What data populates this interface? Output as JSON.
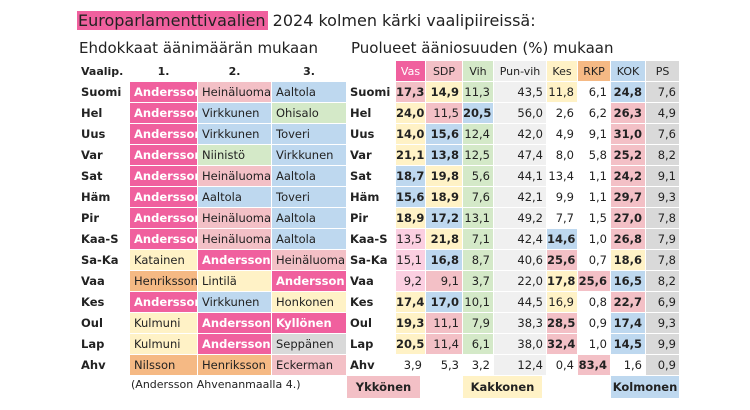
{
  "title": {
    "highlight": "Europarlamenttivaalien",
    "rest": " 2024 kolmen kärki vaalipiireissä:"
  },
  "subtitles": {
    "left": "Ehdokkaat äänimäärän mukaan",
    "right": "Puolueet ääniosuuden (%) mukaan"
  },
  "colors": {
    "Vas": "#f0609e",
    "SDP": "#f3c0c6",
    "Vih": "#d4e9c8",
    "Pun-vih": "#f0f0f0",
    "Kes": "#fff2c6",
    "RKP": "#f5b984",
    "KOK": "#bed8ef",
    "PS": "#d9d9d9",
    "vasBody": "#fbcfe1"
  },
  "table": {
    "district_header": "Vaalip.",
    "rank_headers": [
      "1.",
      "2.",
      "3."
    ],
    "parties": [
      "Vas",
      "SDP",
      "Vih",
      "Pun-vih",
      "Kes",
      "RKP",
      "KOK",
      "PS"
    ],
    "party_header_colors": [
      "#f0609e",
      "#f3c0c6",
      "#d4e9c8",
      "#f0f0f0",
      "#fff2c6",
      "#f5b984",
      "#bed8ef",
      "#d9d9d9"
    ],
    "party_body_colors": [
      "#fbcfe1",
      "#f3c0c6",
      "#d4e9c8",
      "#f0f0f0",
      "#fff2c6",
      "#f5b984",
      "#bed8ef",
      "#d9d9d9"
    ],
    "rows": [
      {
        "district": "Suomi",
        "candidates": [
          "Andersson",
          "Heinäluoma",
          "Aaltola"
        ],
        "cand_parties": [
          "Vas",
          "SDP",
          "KOK"
        ],
        "values": [
          "17,3",
          "14,9",
          "11,3",
          "43,5",
          "11,8",
          "6,1",
          "24,8",
          "7,6"
        ]
      },
      {
        "district": "Hel",
        "candidates": [
          "Andersson",
          "Virkkunen",
          "Ohisalo"
        ],
        "cand_parties": [
          "Vas",
          "KOK",
          "Vih"
        ],
        "values": [
          "24,0",
          "11,5",
          "20,5",
          "56,0",
          "2,6",
          "6,2",
          "26,3",
          "4,9"
        ]
      },
      {
        "district": "Uus",
        "candidates": [
          "Andersson",
          "Virkkunen",
          "Toveri"
        ],
        "cand_parties": [
          "Vas",
          "KOK",
          "KOK"
        ],
        "values": [
          "14,0",
          "15,6",
          "12,4",
          "42,0",
          "4,9",
          "9,1",
          "31,0",
          "7,6"
        ]
      },
      {
        "district": "Var",
        "candidates": [
          "Andersson",
          "Niinistö",
          "Virkkunen"
        ],
        "cand_parties": [
          "Vas",
          "Vih",
          "KOK"
        ],
        "values": [
          "21,1",
          "13,8",
          "12,5",
          "47,4",
          "8,0",
          "5,8",
          "25,2",
          "8,2"
        ]
      },
      {
        "district": "Sat",
        "candidates": [
          "Andersson",
          "Heinäluoma",
          "Aaltola"
        ],
        "cand_parties": [
          "Vas",
          "SDP",
          "KOK"
        ],
        "values": [
          "18,7",
          "19,8",
          "5,6",
          "44,1",
          "13,4",
          "1,1",
          "24,2",
          "9,1"
        ]
      },
      {
        "district": "Häm",
        "candidates": [
          "Andersson",
          "Aaltola",
          "Toveri"
        ],
        "cand_parties": [
          "Vas",
          "KOK",
          "KOK"
        ],
        "values": [
          "15,6",
          "18,9",
          "7,6",
          "42,1",
          "9,9",
          "1,1",
          "29,7",
          "9,3"
        ]
      },
      {
        "district": "Pir",
        "candidates": [
          "Andersson",
          "Heinäluoma",
          "Aaltola"
        ],
        "cand_parties": [
          "Vas",
          "SDP",
          "KOK"
        ],
        "values": [
          "18,9",
          "17,2",
          "13,1",
          "49,2",
          "7,7",
          "1,5",
          "27,0",
          "7,8"
        ]
      },
      {
        "district": "Kaa-S",
        "candidates": [
          "Andersson",
          "Heinäluoma",
          "Aaltola"
        ],
        "cand_parties": [
          "Vas",
          "SDP",
          "KOK"
        ],
        "values": [
          "13,5",
          "21,8",
          "7,1",
          "42,4",
          "14,6",
          "1,0",
          "26,8",
          "7,9"
        ]
      },
      {
        "district": "Sa-Ka",
        "candidates": [
          "Katainen",
          "Andersson",
          "Heinäluoma"
        ],
        "cand_parties": [
          "Kes",
          "Vas",
          "SDP"
        ],
        "values": [
          "15,1",
          "16,8",
          "8,7",
          "40,6",
          "25,6",
          "0,7",
          "18,6",
          "7,8"
        ]
      },
      {
        "district": "Vaa",
        "candidates": [
          "Henriksson",
          "Lintilä",
          "Andersson"
        ],
        "cand_parties": [
          "RKP",
          "Kes",
          "Vas"
        ],
        "values": [
          "9,2",
          "9,1",
          "3,7",
          "22,0",
          "17,8",
          "25,6",
          "16,5",
          "8,2"
        ]
      },
      {
        "district": "Kes",
        "candidates": [
          "Andersson",
          "Virkkunen",
          "Honkonen"
        ],
        "cand_parties": [
          "Vas",
          "KOK",
          "Kes"
        ],
        "values": [
          "17,4",
          "17,0",
          "10,1",
          "44,5",
          "16,9",
          "0,8",
          "22,7",
          "6,9"
        ]
      },
      {
        "district": "Oul",
        "candidates": [
          "Kulmuni",
          "Andersson",
          "Kyllönen"
        ],
        "cand_parties": [
          "Kes",
          "Vas",
          "Vas"
        ],
        "values": [
          "19,3",
          "11,1",
          "7,9",
          "38,3",
          "28,5",
          "0,9",
          "17,4",
          "9,3"
        ]
      },
      {
        "district": "Lap",
        "candidates": [
          "Kulmuni",
          "Andersson",
          "Seppänen"
        ],
        "cand_parties": [
          "Kes",
          "Vas",
          "PS"
        ],
        "values": [
          "20,5",
          "11,4",
          "6,1",
          "38,0",
          "32,4",
          "1,0",
          "14,5",
          "9,9"
        ]
      },
      {
        "district": "Ahv",
        "candidates": [
          "Nilsson",
          "Henriksson",
          "Eckerman"
        ],
        "cand_parties": [
          "RKP",
          "RKP",
          "SDP"
        ],
        "values": [
          "3,9",
          "5,3",
          "3,2",
          "12,4",
          "0,4",
          "83,4",
          "1,6",
          "0,9"
        ]
      }
    ],
    "ranks": [
      [
        1,
        2,
        5,
        0,
        5,
        0,
        3,
        0
      ],
      [
        2,
        5,
        3,
        0,
        0,
        0,
        1,
        0
      ],
      [
        2,
        3,
        5,
        0,
        0,
        0,
        1,
        0
      ],
      [
        2,
        3,
        5,
        0,
        0,
        0,
        1,
        0
      ],
      [
        3,
        2,
        5,
        0,
        0,
        0,
        1,
        0
      ],
      [
        3,
        2,
        5,
        0,
        0,
        0,
        1,
        0
      ],
      [
        2,
        3,
        5,
        0,
        0,
        0,
        1,
        0
      ],
      [
        5,
        2,
        5,
        0,
        3,
        0,
        1,
        0
      ],
      [
        5,
        3,
        5,
        0,
        1,
        0,
        2,
        0
      ],
      [
        5,
        5,
        5,
        0,
        2,
        1,
        3,
        0
      ],
      [
        2,
        3,
        5,
        0,
        5,
        0,
        1,
        0
      ],
      [
        2,
        5,
        5,
        0,
        1,
        0,
        3,
        0
      ],
      [
        2,
        5,
        5,
        0,
        1,
        0,
        3,
        0
      ],
      [
        0,
        0,
        0,
        0,
        0,
        1,
        0,
        0
      ]
    ]
  },
  "footnote": "(Andersson Ahvenanmaalla 4.)",
  "legend": [
    {
      "label": "Ykkönen",
      "color": "#f3c0c6"
    },
    {
      "label": "Kakkonen",
      "color": "#fff2c6"
    },
    {
      "label": "Kolmonen",
      "color": "#bed8ef"
    }
  ],
  "chart_data": {
    "type": "table",
    "title": "Europarlamenttivaalien 2024 kolmen kärki vaalipiireissä:",
    "subtitles": [
      "Ehdokkaat äänimäärän mukaan",
      "Puolueet ääniosuuden (%) mukaan"
    ],
    "categories": [
      "Suomi",
      "Hel",
      "Uus",
      "Var",
      "Sat",
      "Häm",
      "Pir",
      "Kaa-S",
      "Sa-Ka",
      "Vaa",
      "Kes",
      "Oul",
      "Lap",
      "Ahv"
    ],
    "series": [
      {
        "name": "Vas",
        "values": [
          17.3,
          24.0,
          14.0,
          21.1,
          18.7,
          15.6,
          18.9,
          13.5,
          15.1,
          9.2,
          17.4,
          19.3,
          20.5,
          3.9
        ]
      },
      {
        "name": "SDP",
        "values": [
          14.9,
          11.5,
          15.6,
          13.8,
          19.8,
          18.9,
          17.2,
          21.8,
          16.8,
          9.1,
          17.0,
          11.1,
          11.4,
          5.3
        ]
      },
      {
        "name": "Vih",
        "values": [
          11.3,
          20.5,
          12.4,
          12.5,
          5.6,
          7.6,
          13.1,
          7.1,
          8.7,
          3.7,
          10.1,
          7.9,
          6.1,
          3.2
        ]
      },
      {
        "name": "Pun-vih",
        "values": [
          43.5,
          56.0,
          42.0,
          47.4,
          44.1,
          42.1,
          49.2,
          42.4,
          40.6,
          22.0,
          44.5,
          38.3,
          38.0,
          12.4
        ]
      },
      {
        "name": "Kes",
        "values": [
          11.8,
          2.6,
          4.9,
          8.0,
          13.4,
          9.9,
          7.7,
          14.6,
          25.6,
          17.8,
          16.9,
          28.5,
          32.4,
          0.4
        ]
      },
      {
        "name": "RKP",
        "values": [
          6.1,
          6.2,
          9.1,
          5.8,
          1.1,
          1.1,
          1.5,
          1.0,
          0.7,
          25.6,
          0.8,
          0.9,
          1.0,
          83.4
        ]
      },
      {
        "name": "KOK",
        "values": [
          24.8,
          26.3,
          31.0,
          25.2,
          24.2,
          29.7,
          27.0,
          26.8,
          18.6,
          16.5,
          22.7,
          17.4,
          14.5,
          1.6
        ]
      },
      {
        "name": "PS",
        "values": [
          7.6,
          4.9,
          7.6,
          8.2,
          9.1,
          9.3,
          7.8,
          7.9,
          7.8,
          8.2,
          6.9,
          9.3,
          9.9,
          0.9
        ]
      }
    ]
  }
}
